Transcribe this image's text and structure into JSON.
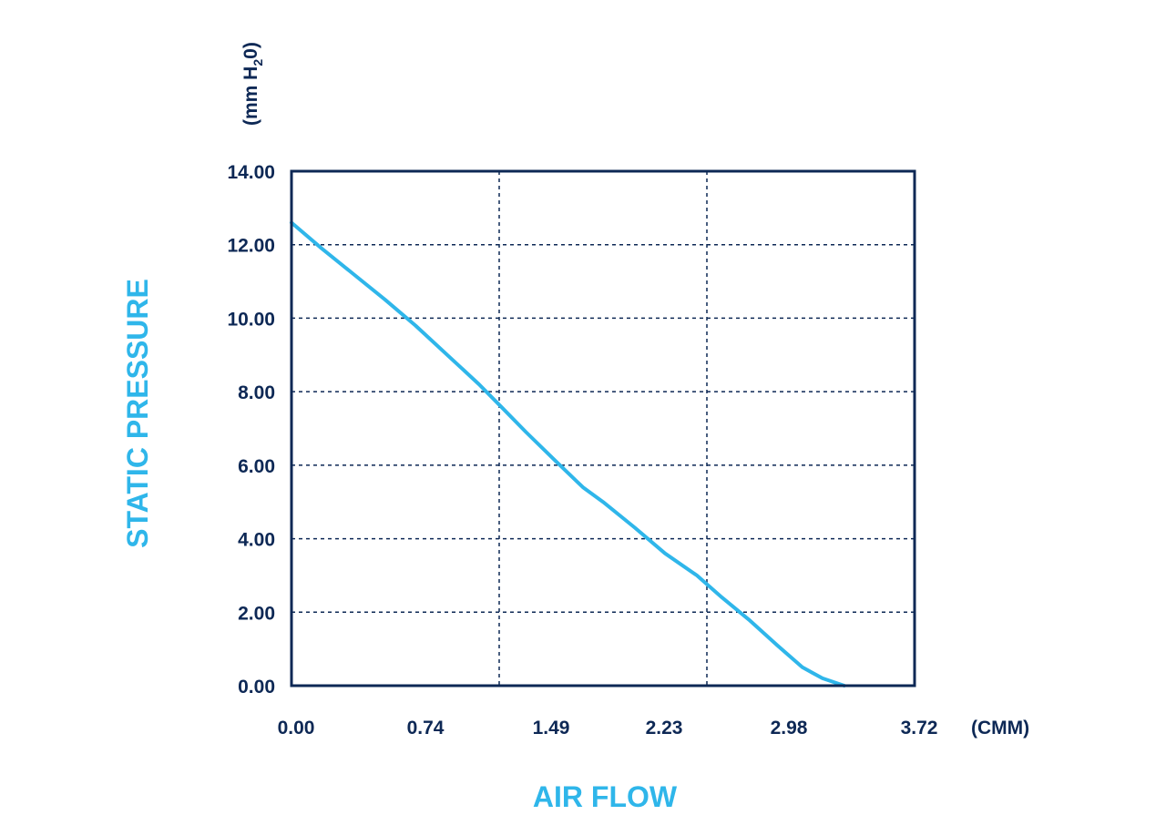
{
  "chart_data": {
    "type": "line",
    "xlabel": "AIR FLOW",
    "ylabel": "STATIC PRESSURE",
    "x_unit": "(CMM)",
    "y_unit_parts": [
      "(mm H",
      "2",
      "0)"
    ],
    "xlim": [
      0,
      3.72
    ],
    "ylim": [
      0,
      14
    ],
    "x_ticks": [
      "0.00",
      "0.74",
      "1.49",
      "2.23",
      "2.98",
      "3.72"
    ],
    "x_tick_values": [
      0,
      0.744,
      1.488,
      2.232,
      2.976,
      3.72
    ],
    "y_ticks": [
      "0.00",
      "2.00",
      "4.00",
      "6.00",
      "8.00",
      "10.00",
      "12.00",
      "14.00"
    ],
    "y_tick_values": [
      0,
      2,
      4,
      6,
      8,
      10,
      12,
      14
    ],
    "grid": true,
    "series": [
      {
        "x": [
          0,
          0.18,
          0.37,
          0.56,
          0.74,
          0.93,
          1.12,
          1.25,
          1.4,
          1.58,
          1.74,
          1.86,
          2.05,
          2.23,
          2.42,
          2.57,
          2.73,
          2.9,
          3.05,
          3.17,
          3.3
        ],
        "y": [
          12.6,
          11.9,
          11.2,
          10.5,
          9.8,
          9.0,
          8.2,
          7.6,
          6.9,
          6.1,
          5.4,
          5.0,
          4.3,
          3.6,
          3.0,
          2.4,
          1.8,
          1.1,
          0.5,
          0.2,
          0.0
        ]
      }
    ],
    "colors": {
      "frame": "#0d2855",
      "curve": "#2fb6ea",
      "title": "#2fb6ea",
      "ticks": "#0d2855"
    }
  }
}
